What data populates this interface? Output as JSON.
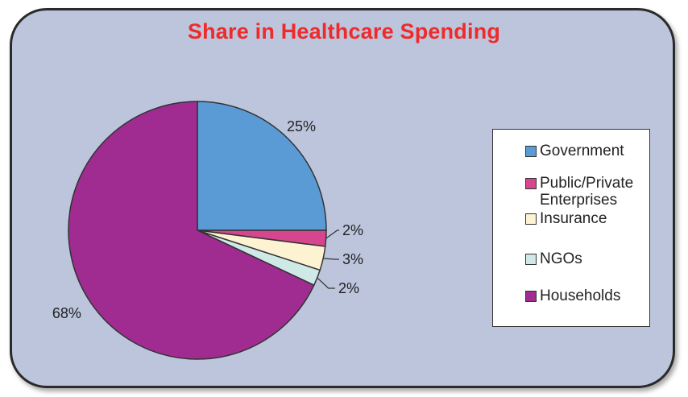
{
  "chart_data": {
    "type": "pie",
    "title": "Share in Healthcare Spending",
    "slices": [
      {
        "name": "Government",
        "value": 25,
        "label": "25%",
        "color": "#5b9bd5"
      },
      {
        "name": "Public/Private Enterprises",
        "value": 2,
        "label": "2%",
        "color": "#d6468f"
      },
      {
        "name": "Insurance",
        "value": 3,
        "label": "3%",
        "color": "#fdf3d3"
      },
      {
        "name": "NGOs",
        "value": 2,
        "label": "2%",
        "color": "#cfeae6"
      },
      {
        "name": "Households",
        "value": 68,
        "label": "68%",
        "color": "#a02c91"
      }
    ],
    "legend_position": "right"
  }
}
